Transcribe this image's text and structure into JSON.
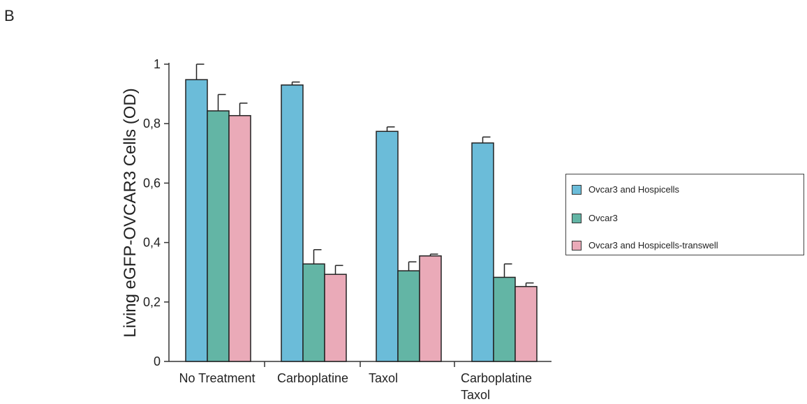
{
  "panel_label": "B",
  "chart_data": {
    "type": "bar",
    "ylabel": "Living eGFP-OVCAR3 Cells (OD)",
    "xlabel": "",
    "ylim": [
      0,
      1
    ],
    "yticks": [
      0,
      0.2,
      0.4,
      0.6,
      0.8,
      1
    ],
    "ytick_labels": [
      "0",
      "0,2",
      "0,4",
      "0,6",
      "0,8",
      "1"
    ],
    "categories": [
      "No Treatment",
      "Carboplatine",
      "Taxol",
      "Carboplatine Taxol"
    ],
    "category_lines": [
      [
        "No Treatment"
      ],
      [
        "Carboplatine"
      ],
      [
        "Taxol"
      ],
      [
        "Carboplatine",
        "Taxol"
      ]
    ],
    "series": [
      {
        "name": "Ovcar3 and Hospicells",
        "color": "#6bbcd9",
        "values": [
          0.948,
          0.93,
          0.774,
          0.735
        ],
        "errors": [
          0.052,
          0.01,
          0.015,
          0.02
        ]
      },
      {
        "name": "Ovcar3",
        "color": "#63b5a5",
        "values": [
          0.843,
          0.328,
          0.305,
          0.283
        ],
        "errors": [
          0.055,
          0.048,
          0.03,
          0.045
        ]
      },
      {
        "name": "Ovcar3 and Hospicells-transwell",
        "color": "#eaaab8",
        "values": [
          0.827,
          0.293,
          0.355,
          0.252
        ],
        "errors": [
          0.042,
          0.03,
          0.006,
          0.012
        ]
      }
    ],
    "legend_position": "right",
    "grid": false
  }
}
